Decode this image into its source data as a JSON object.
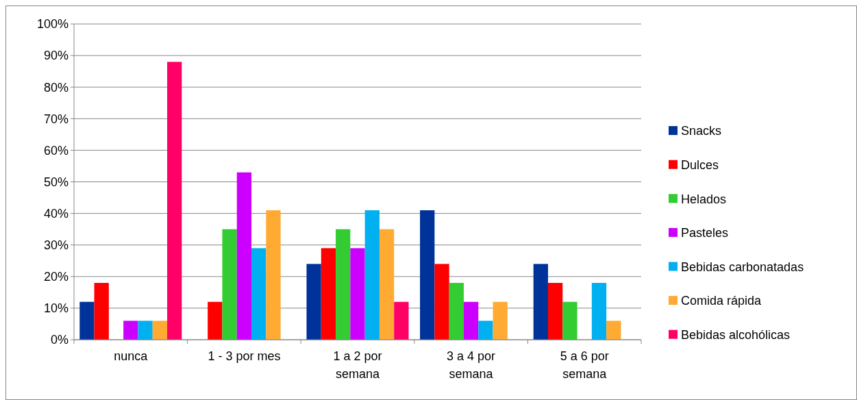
{
  "chart_data": {
    "type": "bar",
    "categories": [
      "nunca",
      "1 - 3 por mes",
      "1 a 2 por semana",
      "3 a 4 por semana",
      "5 a 6 por semana"
    ],
    "series": [
      {
        "name": "Snacks",
        "color": "#003399",
        "values": [
          12,
          0,
          24,
          41,
          24
        ]
      },
      {
        "name": "Dulces",
        "color": "#ff0000",
        "values": [
          18,
          12,
          29,
          24,
          18
        ]
      },
      {
        "name": "Helados",
        "color": "#33cc33",
        "values": [
          0,
          35,
          35,
          18,
          12
        ]
      },
      {
        "name": "Pasteles",
        "color": "#cc00ff",
        "values": [
          6,
          53,
          29,
          12,
          0
        ]
      },
      {
        "name": "Bebidas carbonatadas",
        "color": "#00b0f0",
        "values": [
          6,
          29,
          41,
          6,
          18
        ]
      },
      {
        "name": "Comida rápida",
        "color": "#ffaa33",
        "values": [
          6,
          41,
          35,
          12,
          6
        ]
      },
      {
        "name": "Bebidas alcohólicas",
        "color": "#ff0066",
        "values": [
          88,
          0,
          12,
          0,
          0
        ]
      }
    ],
    "ylim": [
      0,
      100
    ],
    "yticks": [
      {
        "value": 0,
        "label": "0%"
      },
      {
        "value": 10,
        "label": "10%"
      },
      {
        "value": 20,
        "label": "20%"
      },
      {
        "value": 30,
        "label": "30%"
      },
      {
        "value": 40,
        "label": "40%"
      },
      {
        "value": 50,
        "label": "50%"
      },
      {
        "value": 60,
        "label": "60%"
      },
      {
        "value": 70,
        "label": "70%"
      },
      {
        "value": 80,
        "label": "80%"
      },
      {
        "value": 90,
        "label": "90%"
      },
      {
        "value": 100,
        "label": "100%"
      }
    ],
    "grid": "y",
    "legend": "right"
  }
}
